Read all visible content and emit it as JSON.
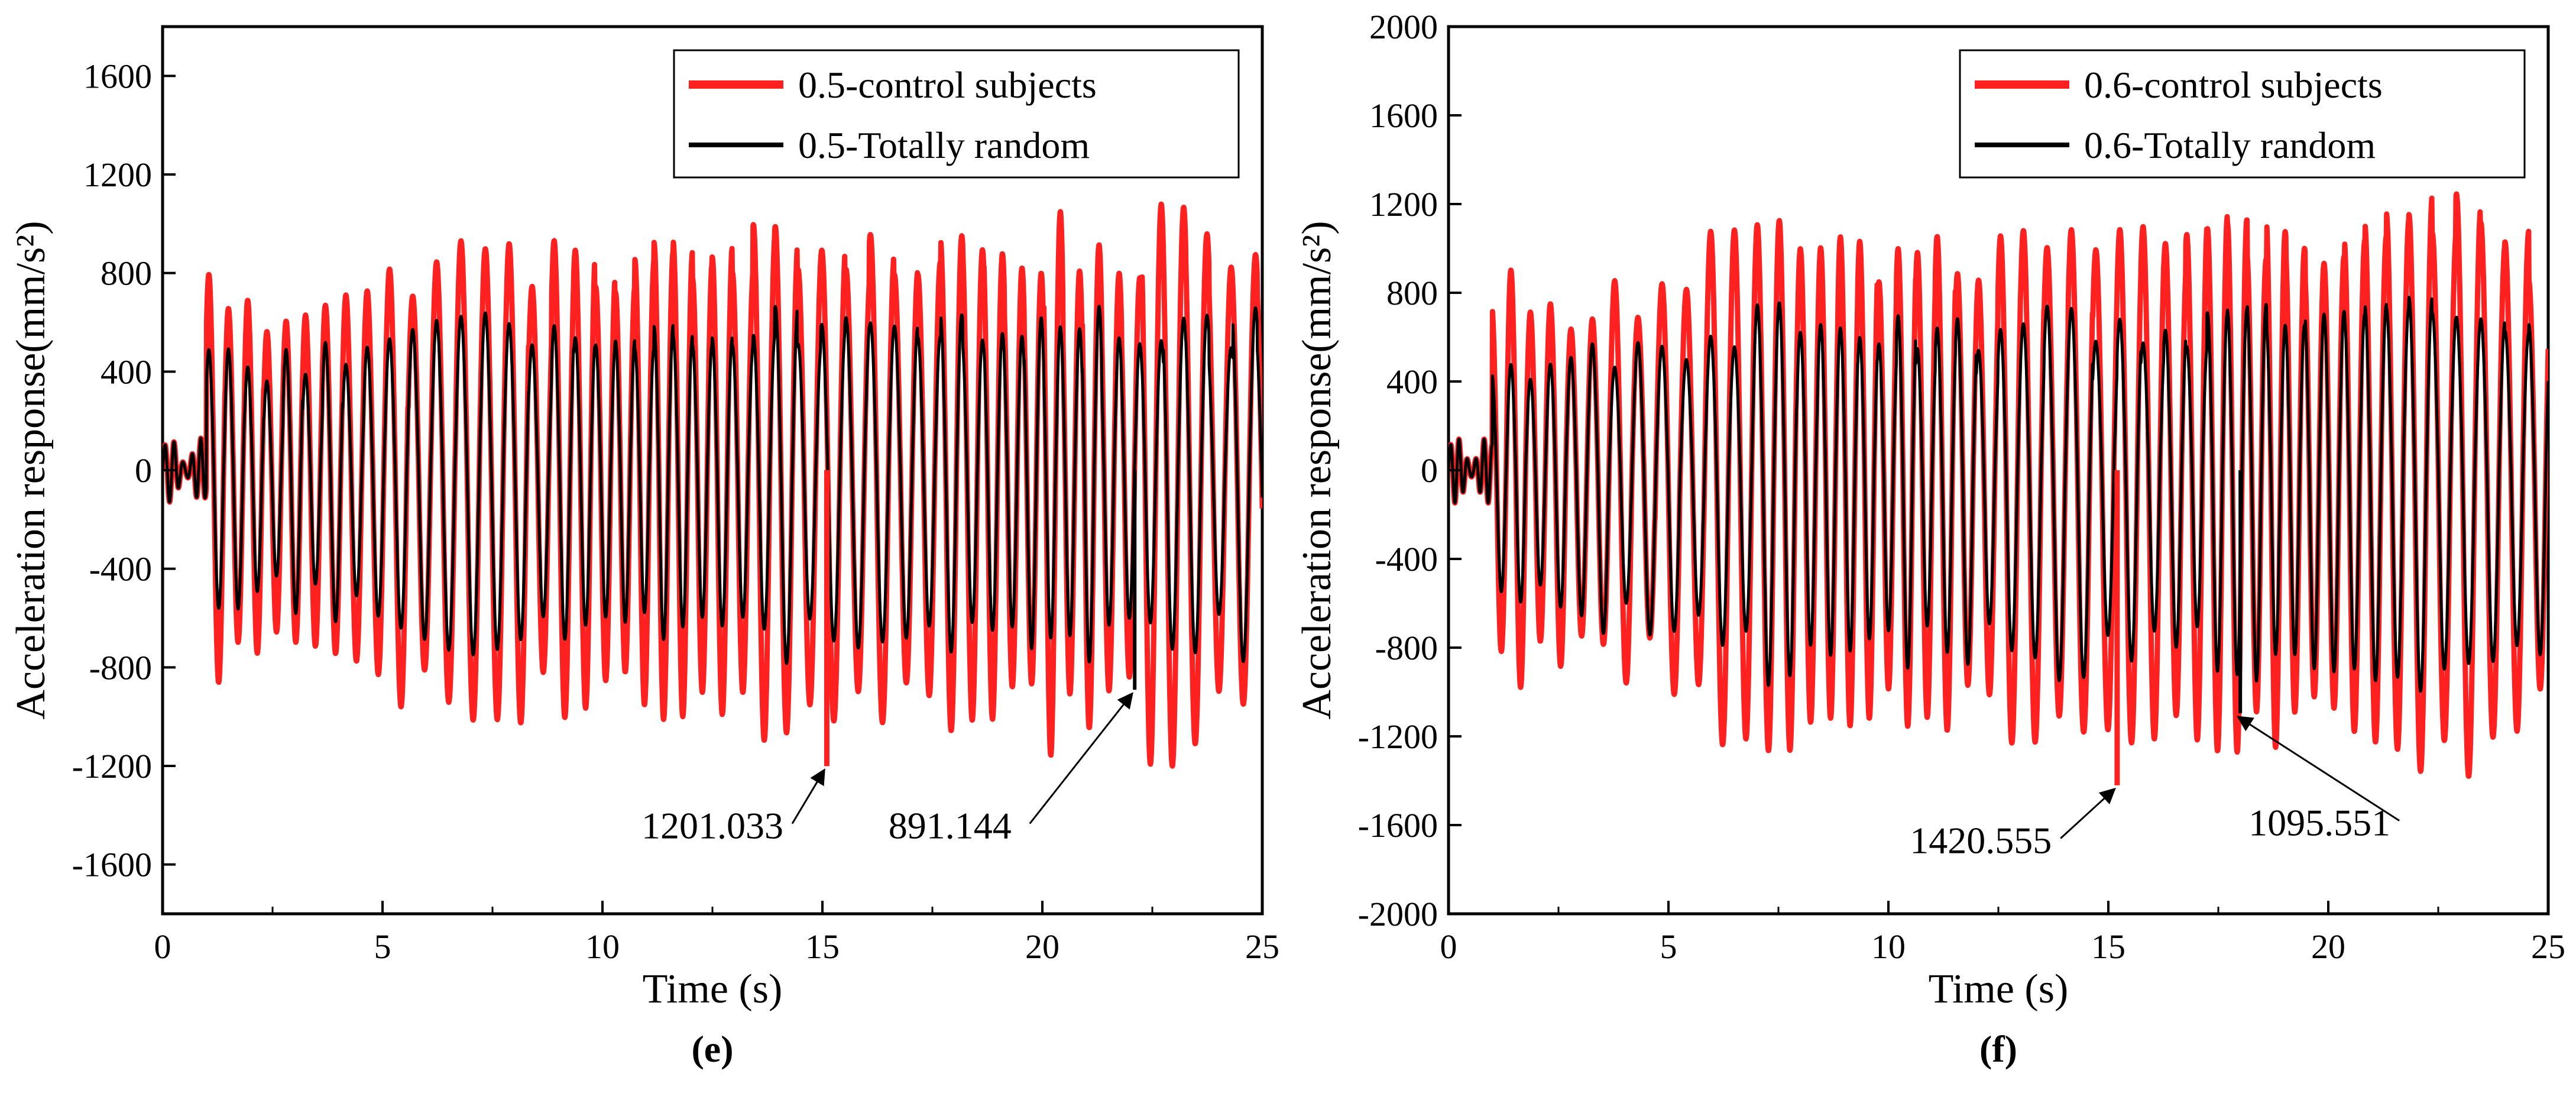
{
  "chart_data": [
    {
      "type": "line",
      "panel_label": "(e)",
      "xlabel": "Time (s)",
      "ylabel": "Acceleration response(mm/s²)",
      "xlim": [
        0,
        25
      ],
      "ylim": [
        -1800,
        1800
      ],
      "xticks": [
        0,
        5,
        10,
        15,
        20,
        25
      ],
      "yticks": [
        -1600,
        -1200,
        -800,
        -400,
        0,
        400,
        800,
        1200,
        1600
      ],
      "legend_position": "top-right",
      "series": [
        {
          "name": "0.5-control subjects",
          "color": "#ff2020",
          "role": "control",
          "peak_max": 1080,
          "peak_min": -1201.033
        },
        {
          "name": "0.5-Totally random",
          "color": "#000000",
          "role": "random",
          "peak_max": 760,
          "peak_min": -891.144
        }
      ],
      "signal": {
        "pre_amplitude": 130,
        "envelope_ratio": [
          [
            1.0,
            0.78
          ],
          [
            2.0,
            0.7
          ],
          [
            5.0,
            0.82
          ],
          [
            7.2,
            1.0
          ],
          [
            8.0,
            0.92
          ],
          [
            10.0,
            0.9
          ],
          [
            13.0,
            0.95
          ],
          [
            15.1,
            1.0
          ],
          [
            17.0,
            0.96
          ],
          [
            20.0,
            0.98
          ],
          [
            22.2,
            1.0
          ],
          [
            25.0,
            0.95
          ]
        ],
        "modulation": [
          0.12,
          2.2
        ]
      },
      "annotations": [
        {
          "text": "1201.033",
          "x": 15.1,
          "y": -1201.033,
          "label_x": 12.5,
          "label_y": -1470
        },
        {
          "text": "891.144",
          "x": 22.1,
          "y": -891.144,
          "label_x": 17.9,
          "label_y": -1470
        }
      ]
    },
    {
      "type": "line",
      "panel_label": "(f)",
      "xlabel": "Time (s)",
      "ylabel": "Acceleration response(mm/s²)",
      "xlim": [
        0,
        25
      ],
      "ylim": [
        -2000,
        2000
      ],
      "xticks": [
        0,
        5,
        10,
        15,
        20,
        25
      ],
      "yticks": [
        -2000,
        -1600,
        -1200,
        -800,
        -400,
        0,
        400,
        800,
        1200,
        1600,
        2000
      ],
      "legend_position": "top-right",
      "series": [
        {
          "name": "0.6-control subjects",
          "color": "#ff2020",
          "role": "control",
          "peak_max": 1260,
          "peak_min": -1420.555
        },
        {
          "name": "0.6-Totally random",
          "color": "#000000",
          "role": "random",
          "peak_max": 860,
          "peak_min": -1095.551
        }
      ],
      "signal": {
        "pre_amplitude": 150,
        "envelope_ratio": [
          [
            1.0,
            0.75
          ],
          [
            2.0,
            0.68
          ],
          [
            5.0,
            0.8
          ],
          [
            7.3,
            1.0
          ],
          [
            8.0,
            0.9
          ],
          [
            10.0,
            0.88
          ],
          [
            13.0,
            0.95
          ],
          [
            15.2,
            1.0
          ],
          [
            17.0,
            0.95
          ],
          [
            20.0,
            0.97
          ],
          [
            22.2,
            1.0
          ],
          [
            25.0,
            0.92
          ]
        ],
        "modulation": [
          0.1,
          2.0
        ]
      },
      "annotations": [
        {
          "text": "1420.555",
          "x": 15.2,
          "y": -1420.555,
          "label_x": 12.1,
          "label_y": -1700
        },
        {
          "text": "1095.551",
          "x": 18.0,
          "y": -1095.551,
          "label_x": 19.8,
          "label_y": -1620
        }
      ]
    }
  ]
}
